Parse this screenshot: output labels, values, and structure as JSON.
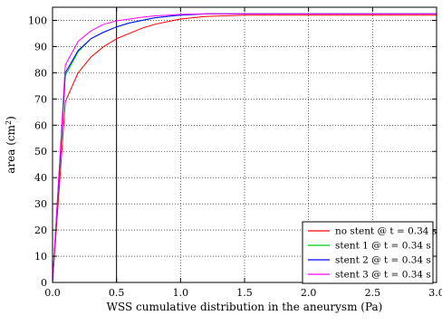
{
  "chart_data": {
    "type": "line",
    "title": "",
    "xlabel": "WSS cumulative distribution in the aneurysm (Pa)",
    "ylabel": "area (cm",
    "ylabel_exponent": "2",
    "ylabel_suffix": ")",
    "xlim": [
      0.0,
      3.0
    ],
    "ylim": [
      0,
      105
    ],
    "xticks": [
      0.0,
      0.5,
      1.0,
      1.5,
      2.0,
      2.5,
      3.0
    ],
    "xtick_labels": [
      "0.0",
      "0.5",
      "1.0",
      "1.5",
      "2.0",
      "2.5",
      "3.0"
    ],
    "yticks": [
      0,
      10,
      20,
      30,
      40,
      50,
      60,
      70,
      80,
      90,
      100
    ],
    "ytick_labels": [
      "0",
      "10",
      "20",
      "30",
      "40",
      "50",
      "60",
      "70",
      "80",
      "90",
      "100"
    ],
    "grid": true,
    "grid_style": "dotted",
    "vertical_marker_x": 0.5,
    "legend_position": "bottom-right",
    "series": [
      {
        "name": "no stent @ t = 0.34 s",
        "color": "#ff0000",
        "x": [
          0.0,
          0.1,
          0.2,
          0.3,
          0.4,
          0.5,
          0.6,
          0.7,
          0.8,
          0.9,
          1.0,
          1.2,
          1.5,
          2.0,
          2.5,
          3.0
        ],
        "y": [
          0,
          69,
          80,
          86,
          90,
          93,
          95,
          97,
          98.5,
          99.5,
          100.5,
          101.5,
          102,
          102,
          102,
          102
        ]
      },
      {
        "name": "stent 1 @ t = 0.34 s",
        "color": "#00cc00",
        "x": [
          0.0,
          0.1,
          0.2,
          0.3,
          0.4,
          0.5,
          0.6,
          0.7,
          0.8,
          0.9,
          1.0,
          1.2,
          1.5,
          2.0,
          2.5,
          3.0
        ],
        "y": [
          0,
          79,
          88,
          93,
          95.5,
          97.5,
          99,
          100,
          101,
          101.5,
          102,
          102.5,
          102.5,
          102.5,
          102.5,
          102.5
        ]
      },
      {
        "name": "stent 2 @ t = 0.34 s",
        "color": "#0000ff",
        "x": [
          0.0,
          0.1,
          0.2,
          0.3,
          0.4,
          0.5,
          0.6,
          0.7,
          0.8,
          0.9,
          1.0,
          1.2,
          1.5,
          2.0,
          2.5,
          3.0
        ],
        "y": [
          0,
          80,
          88.5,
          93,
          95.5,
          97.5,
          99,
          100,
          101,
          101.5,
          102,
          102.5,
          102.5,
          102.5,
          102.5,
          102.5
        ]
      },
      {
        "name": "stent 3 @ t = 0.34 s",
        "color": "#ff00ff",
        "x": [
          0.0,
          0.1,
          0.2,
          0.3,
          0.4,
          0.5,
          0.6,
          0.7,
          0.8,
          0.9,
          1.0,
          1.2,
          1.5,
          2.0,
          2.5,
          3.0
        ],
        "y": [
          0,
          83,
          92,
          96,
          98.5,
          99.8,
          100.5,
          101.2,
          101.7,
          102,
          102.3,
          102.5,
          102.5,
          102.5,
          102.5,
          102.5
        ]
      }
    ]
  }
}
